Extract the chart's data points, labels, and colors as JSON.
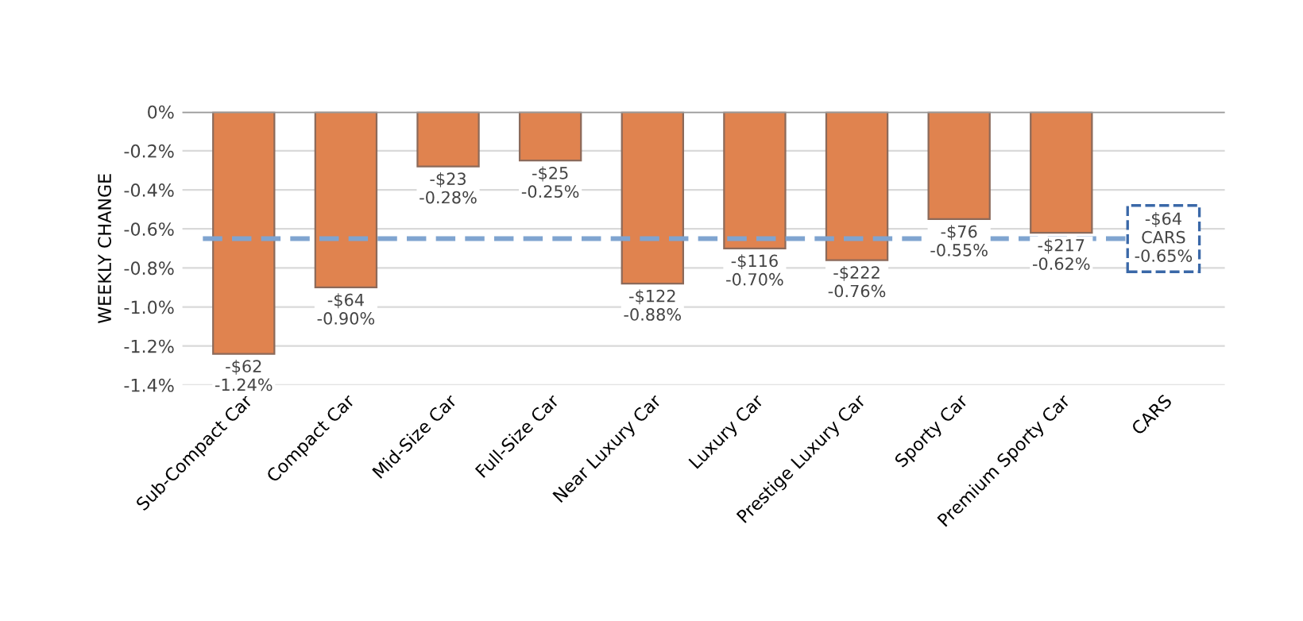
{
  "chart_data": {
    "type": "bar",
    "ylabel": "WEEKLY CHANGE",
    "categories": [
      "Sub-Compact Car",
      "Compact Car",
      "Mid-Size Car",
      "Full-Size Car",
      "Near Luxury Car",
      "Luxury Car",
      "Prestige Luxury Car",
      "Sporty Car",
      "Premium Sporty Car",
      "CARS"
    ],
    "values": [
      -1.24,
      -0.9,
      -0.28,
      -0.25,
      -0.88,
      -0.7,
      -0.76,
      -0.55,
      -0.62,
      null
    ],
    "value_labels": [
      "-$62\n-1.24%",
      "-$64\n-0.90%",
      "-$23\n-0.28%",
      "-$25\n-0.25%",
      "-$122\n-0.88%",
      "-$116\n-0.70%",
      "-$222\n-0.76%",
      "-$76\n-0.55%",
      "-$217\n-0.62%",
      null
    ],
    "color": "#e0834f",
    "ylim": [
      -1.4,
      0
    ],
    "yticks": [
      {
        "value": 0,
        "label": "0%"
      },
      {
        "value": -0.2,
        "label": "-0.2%"
      },
      {
        "value": -0.4,
        "label": "-0.4%"
      },
      {
        "value": -0.6,
        "label": "-0.6%"
      },
      {
        "value": -0.8,
        "label": "-0.8%"
      },
      {
        "value": -1.0,
        "label": "-1.0%"
      },
      {
        "value": -1.2,
        "label": "-1.2%"
      },
      {
        "value": -1.4,
        "label": "-1.4%"
      }
    ],
    "ref_lines": [
      {
        "axis": "y",
        "value": -0.65,
        "label": "-$64\nCARS\n-0.65%",
        "color": "#7fa4d0",
        "line_style": "dashed"
      }
    ],
    "grid": "y",
    "legend": false
  }
}
